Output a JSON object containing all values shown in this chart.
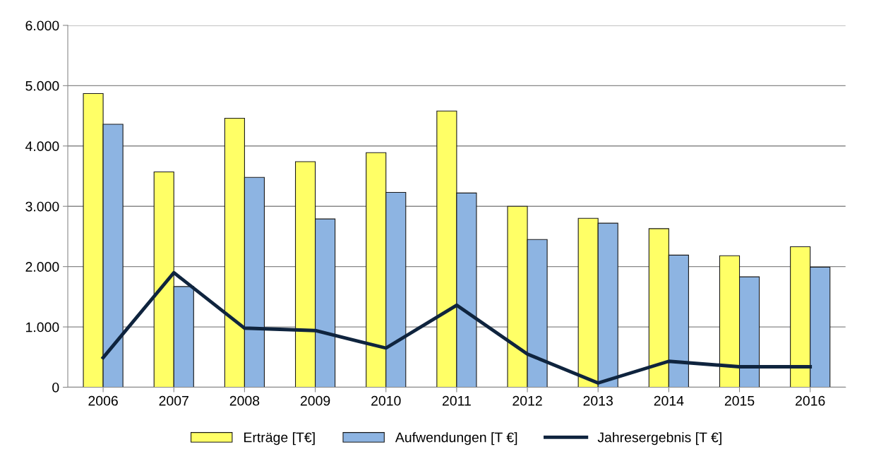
{
  "chart_data": {
    "type": "bar",
    "categories": [
      "2006",
      "2007",
      "2008",
      "2009",
      "2010",
      "2011",
      "2012",
      "2013",
      "2014",
      "2015",
      "2016"
    ],
    "series": [
      {
        "name": "Erträge [T€]",
        "color": "#ffff66",
        "values": [
          4870,
          3570,
          4460,
          3740,
          3890,
          4580,
          3000,
          2800,
          2630,
          2180,
          2330
        ]
      },
      {
        "name": "Aufwendungen [T €]",
        "color": "#8db4e2",
        "values": [
          4360,
          1670,
          3480,
          2790,
          3230,
          3220,
          2450,
          2720,
          2190,
          1830,
          1990
        ]
      },
      {
        "name": "Jahresergebnis [T €]",
        "color": "#0f243e",
        "type": "line",
        "values": [
          490,
          1900,
          980,
          940,
          650,
          1360,
          550,
          70,
          430,
          340,
          340
        ]
      }
    ],
    "ylim": [
      0,
      6000
    ],
    "yticks": [
      {
        "value": 0,
        "label": "0"
      },
      {
        "value": 1000,
        "label": "1.000"
      },
      {
        "value": 2000,
        "label": "2.000"
      },
      {
        "value": 3000,
        "label": "3.000"
      },
      {
        "value": 4000,
        "label": "4.000"
      },
      {
        "value": 5000,
        "label": "5.000"
      },
      {
        "value": 6000,
        "label": "6.000"
      }
    ],
    "grid": "y",
    "legend": "bottom",
    "marker": "none",
    "line_style": "solid"
  }
}
